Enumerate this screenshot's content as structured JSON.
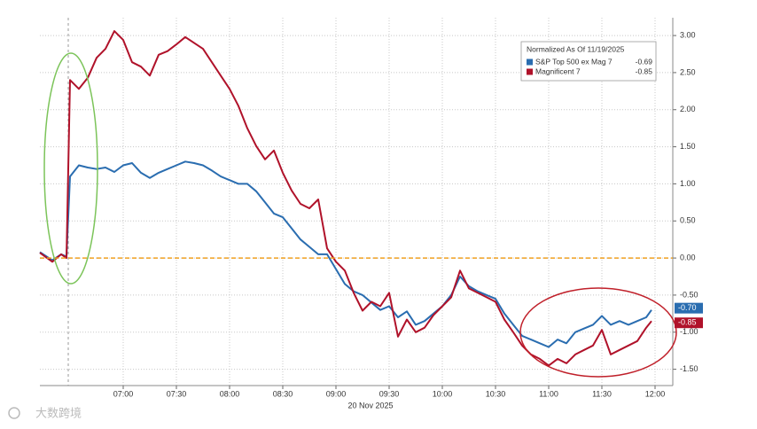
{
  "chart_data": {
    "type": "line",
    "legend_title": "Normalized As Of 11/19/2025",
    "x": [
      "06:13",
      "06:20",
      "06:25",
      "06:28",
      "06:30",
      "06:35",
      "06:40",
      "06:45",
      "06:50",
      "06:55",
      "07:00",
      "07:05",
      "07:10",
      "07:15",
      "07:20",
      "07:25",
      "07:30",
      "07:35",
      "07:40",
      "07:45",
      "07:50",
      "07:55",
      "08:00",
      "08:05",
      "08:10",
      "08:15",
      "08:20",
      "08:25",
      "08:30",
      "08:35",
      "08:40",
      "08:45",
      "08:50",
      "08:55",
      "09:00",
      "09:05",
      "09:10",
      "09:15",
      "09:20",
      "09:25",
      "09:30",
      "09:35",
      "09:40",
      "09:45",
      "09:50",
      "09:55",
      "10:00",
      "10:05",
      "10:10",
      "10:15",
      "10:20",
      "10:25",
      "10:30",
      "10:35",
      "10:40",
      "10:45",
      "10:50",
      "10:55",
      "11:00",
      "11:05",
      "11:10",
      "11:15",
      "11:20",
      "11:25",
      "11:30",
      "11:35",
      "11:40",
      "11:45",
      "11:50",
      "11:55",
      "11:58"
    ],
    "series": [
      {
        "name": "S&P Top 500 ex Mag 7",
        "color": "#2a6db0",
        "legend_value": -0.69,
        "end_value": -0.7,
        "end_label": "-0.70",
        "values": [
          0.08,
          -0.03,
          0.05,
          0.02,
          1.1,
          1.25,
          1.22,
          1.2,
          1.22,
          1.16,
          1.25,
          1.28,
          1.15,
          1.08,
          1.15,
          1.2,
          1.25,
          1.3,
          1.28,
          1.25,
          1.18,
          1.1,
          1.05,
          1.0,
          1.0,
          0.9,
          0.75,
          0.6,
          0.55,
          0.4,
          0.25,
          0.15,
          0.05,
          0.05,
          -0.15,
          -0.35,
          -0.45,
          -0.5,
          -0.6,
          -0.7,
          -0.65,
          -0.8,
          -0.72,
          -0.9,
          -0.85,
          -0.75,
          -0.65,
          -0.5,
          -0.25,
          -0.38,
          -0.45,
          -0.5,
          -0.55,
          -0.75,
          -0.9,
          -1.05,
          -1.1,
          -1.15,
          -1.2,
          -1.1,
          -1.15,
          -1.0,
          -0.95,
          -0.9,
          -0.78,
          -0.9,
          -0.85,
          -0.9,
          -0.85,
          -0.8,
          -0.7
        ]
      },
      {
        "name": "Magnificent 7",
        "color": "#b0122a",
        "legend_value": -0.85,
        "end_value": -0.85,
        "end_label": "-0.85",
        "values": [
          0.07,
          -0.05,
          0.05,
          0.0,
          2.4,
          2.28,
          2.43,
          2.7,
          2.82,
          3.06,
          2.94,
          2.64,
          2.58,
          2.46,
          2.74,
          2.79,
          2.88,
          2.98,
          2.9,
          2.82,
          2.64,
          2.46,
          2.28,
          2.05,
          1.75,
          1.51,
          1.33,
          1.45,
          1.15,
          0.91,
          0.73,
          0.67,
          0.79,
          0.13,
          -0.05,
          -0.17,
          -0.47,
          -0.71,
          -0.59,
          -0.65,
          -0.47,
          -1.06,
          -0.83,
          -1.0,
          -0.94,
          -0.77,
          -0.65,
          -0.53,
          -0.17,
          -0.41,
          -0.47,
          -0.53,
          -0.59,
          -0.83,
          -1.0,
          -1.18,
          -1.3,
          -1.36,
          -1.45,
          -1.36,
          -1.42,
          -1.3,
          -1.24,
          -1.18,
          -0.97,
          -1.3,
          -1.24,
          -1.18,
          -1.12,
          -0.94,
          -0.85
        ]
      }
    ],
    "xlim": [
      "06:13",
      "12:10"
    ],
    "xticks": [
      "07:00",
      "07:30",
      "08:00",
      "08:30",
      "09:00",
      "09:30",
      "10:00",
      "10:30",
      "11:00",
      "11:30",
      "12:00"
    ],
    "x_label": "20 Nov 2025",
    "ylim": [
      -1.72,
      3.24
    ],
    "yticks": [
      {
        "value": 3,
        "label": "3.00"
      },
      {
        "value": 2.5,
        "label": "2.50"
      },
      {
        "value": 2,
        "label": "2.00"
      },
      {
        "value": 1.5,
        "label": "1.50"
      },
      {
        "value": 1,
        "label": "1.00"
      },
      {
        "value": 0.5,
        "label": "0.50"
      },
      {
        "value": 0,
        "label": "0.00"
      },
      {
        "value": -0.5,
        "label": "-0.50"
      },
      {
        "value": -1,
        "label": "-1.00"
      },
      {
        "value": -1.5,
        "label": "-1.50"
      }
    ],
    "hline": 0,
    "hline_color": "#f0a020",
    "vline": "06:29",
    "grid": true,
    "watermark": "大数跨境"
  }
}
